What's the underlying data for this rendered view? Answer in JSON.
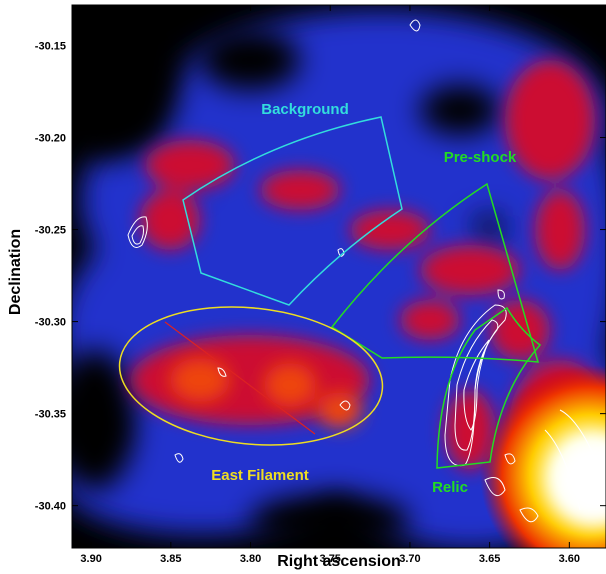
{
  "chart_data": {
    "type": "image",
    "x_label": "Right ascension",
    "y_label": "Declination",
    "xlim": [
      3.912,
      3.577
    ],
    "ylim": [
      -30.423,
      -30.128
    ],
    "xticks": [
      {
        "value": 3.9,
        "label": "3.90"
      },
      3.85,
      {
        "value": 3.8,
        "label": "3.80"
      },
      3.75,
      {
        "value": 3.7,
        "label": "3.70"
      },
      3.65,
      {
        "value": 3.6,
        "label": "3.60"
      }
    ],
    "yticks": [
      -30.15,
      {
        "value": -30.2,
        "label": "-30.20"
      },
      -30.25,
      {
        "value": -30.3,
        "label": "-30.30"
      },
      -30.35,
      {
        "value": -30.4,
        "label": "-30.40"
      }
    ],
    "annotations": [
      {
        "text": "Background",
        "color": "#33dddd"
      },
      {
        "text": "Pre-shock",
        "color": "#22dd22"
      },
      {
        "text": "East Filament",
        "color": "#eedd22"
      },
      {
        "text": "Relic",
        "color": "#22dd22"
      }
    ]
  }
}
